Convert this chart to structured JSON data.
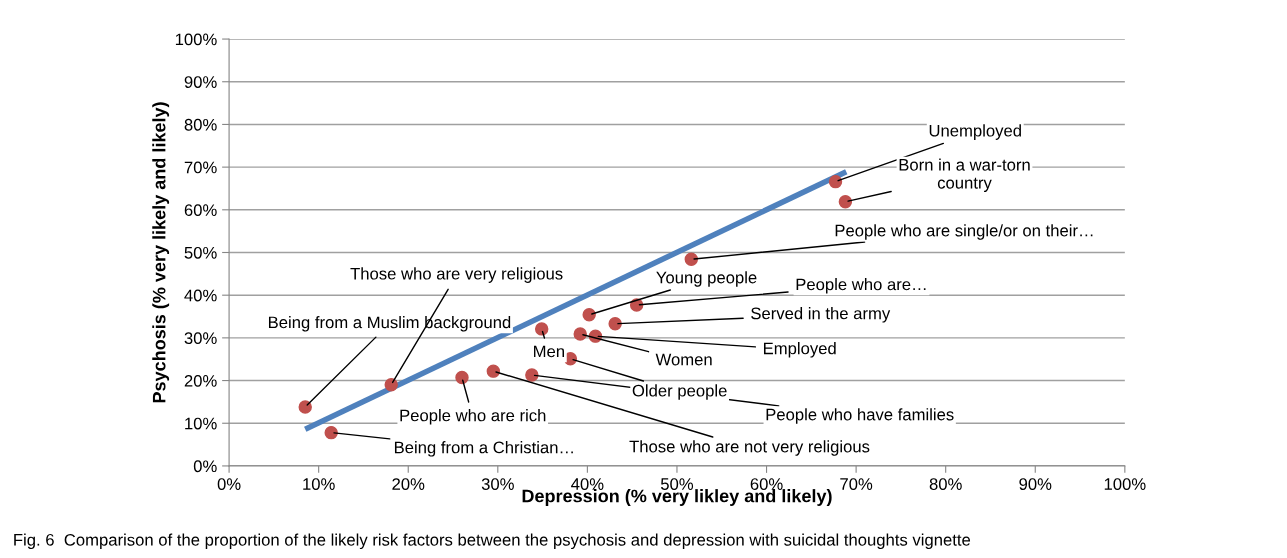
{
  "chart_data": {
    "type": "scatter",
    "xlabel": "Depression (% very likley and likely)",
    "ylabel": "Psychosis (% very likely and likely)",
    "series": [
      {
        "color": "#c0504d",
        "marker": "circle",
        "x": [
          8.5,
          11.4,
          18.1,
          26.0,
          29.5,
          33.8,
          34.9,
          38.1,
          39.2,
          40.2,
          40.9,
          43.1,
          45.5,
          51.6,
          67.7,
          68.8
        ],
        "values": [
          13.8,
          7.8,
          19.0,
          20.7,
          22.2,
          21.3,
          32.1,
          25.1,
          30.9,
          35.4,
          30.4,
          33.3,
          37.7,
          48.4,
          66.6,
          61.9
        ]
      },
      {
        "type": "line",
        "color": "#4f81bd",
        "x": [
          8.5,
          68.9
        ],
        "values": [
          8.6,
          68.9
        ]
      }
    ],
    "xlim": [
      0,
      100
    ],
    "ylim": [
      0,
      100
    ],
    "xticks": [
      {
        "value": 0,
        "label": "0%"
      },
      {
        "value": 10,
        "label": "10%"
      },
      {
        "value": 20,
        "label": "20%"
      },
      {
        "value": 30,
        "label": "30%"
      },
      {
        "value": 40,
        "label": "40%"
      },
      {
        "value": 50,
        "label": "50%"
      },
      {
        "value": 60,
        "label": "60%"
      },
      {
        "value": 70,
        "label": "70%"
      },
      {
        "value": 80,
        "label": "80%"
      },
      {
        "value": 90,
        "label": "90%"
      },
      {
        "value": 100,
        "label": "100%"
      }
    ],
    "yticks": [
      {
        "value": 0,
        "label": "0%"
      },
      {
        "value": 10,
        "label": "10%"
      },
      {
        "value": 20,
        "label": "20%"
      },
      {
        "value": 30,
        "label": "30%"
      },
      {
        "value": 40,
        "label": "40%"
      },
      {
        "value": 50,
        "label": "50%"
      },
      {
        "value": 60,
        "label": "60%"
      },
      {
        "value": 70,
        "label": "70%"
      },
      {
        "value": 80,
        "label": "80%"
      },
      {
        "value": 90,
        "label": "90%"
      },
      {
        "value": 100,
        "label": "100%"
      }
    ],
    "grid": "y",
    "legend": false,
    "annotations": [
      {
        "text": "Being from a Muslim background",
        "x": 8.5,
        "y": 13.8
      },
      {
        "text": "Being from a Christian…",
        "x": 11.4,
        "y": 7.8
      },
      {
        "text": "Those who are very religious",
        "x": 18.1,
        "y": 19.0
      },
      {
        "text": "People who are rich",
        "x": 26.0,
        "y": 20.7
      },
      {
        "text": "Those who are not very religious",
        "x": 29.5,
        "y": 22.2
      },
      {
        "text": "People who have families",
        "x": 33.8,
        "y": 21.3
      },
      {
        "text": "Men",
        "x": 34.9,
        "y": 32.1
      },
      {
        "text": "Older people",
        "x": 38.1,
        "y": 25.1
      },
      {
        "text": "Women",
        "x": 39.2,
        "y": 30.9
      },
      {
        "text": "Young people",
        "x": 40.2,
        "y": 35.4
      },
      {
        "text": "Employed",
        "x": 40.9,
        "y": 30.4
      },
      {
        "text": "Served in the army",
        "x": 43.1,
        "y": 33.3
      },
      {
        "text": "People who are…",
        "x": 45.5,
        "y": 37.7
      },
      {
        "text": "People who are single/or on their…",
        "x": 51.6,
        "y": 48.4
      },
      {
        "text": "Unemployed",
        "x": 67.7,
        "y": 66.6
      },
      {
        "text": "Born in a war-torn\ncountry",
        "x": 68.8,
        "y": 61.9
      },
      "Fig. 6  Comparison of the proportion of the likely risk factors between the psychosis and depression with suicidal thoughts vignette"
    ]
  }
}
